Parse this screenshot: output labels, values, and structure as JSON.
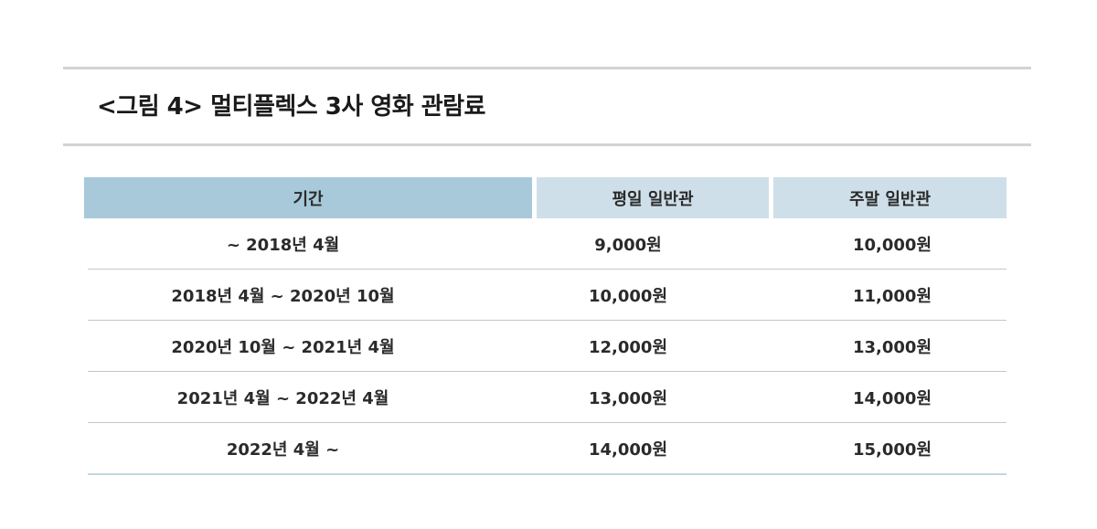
{
  "figure": {
    "title": "<그림 4> 멀티플렉스 3사 영화 관람료"
  },
  "table": {
    "headers": [
      "기간",
      "평일 일반관",
      "주말 일반관"
    ],
    "rows": [
      [
        "~ 2018년 4월",
        "9,000원",
        "10,000원"
      ],
      [
        "2018년 4월 ~ 2020년 10월",
        "10,000원",
        "11,000원"
      ],
      [
        "2020년 10월 ~ 2021년 4월",
        "12,000원",
        "13,000원"
      ],
      [
        "2021년 4월 ~ 2022년 4월",
        "13,000원",
        "14,000원"
      ],
      [
        "2022년 4월 ~",
        "14,000원",
        "15,000원"
      ]
    ]
  },
  "colors": {
    "header_primary": "#a7c9d9",
    "header_secondary": "#cfdfe9",
    "rule": "#d3d3d3"
  }
}
